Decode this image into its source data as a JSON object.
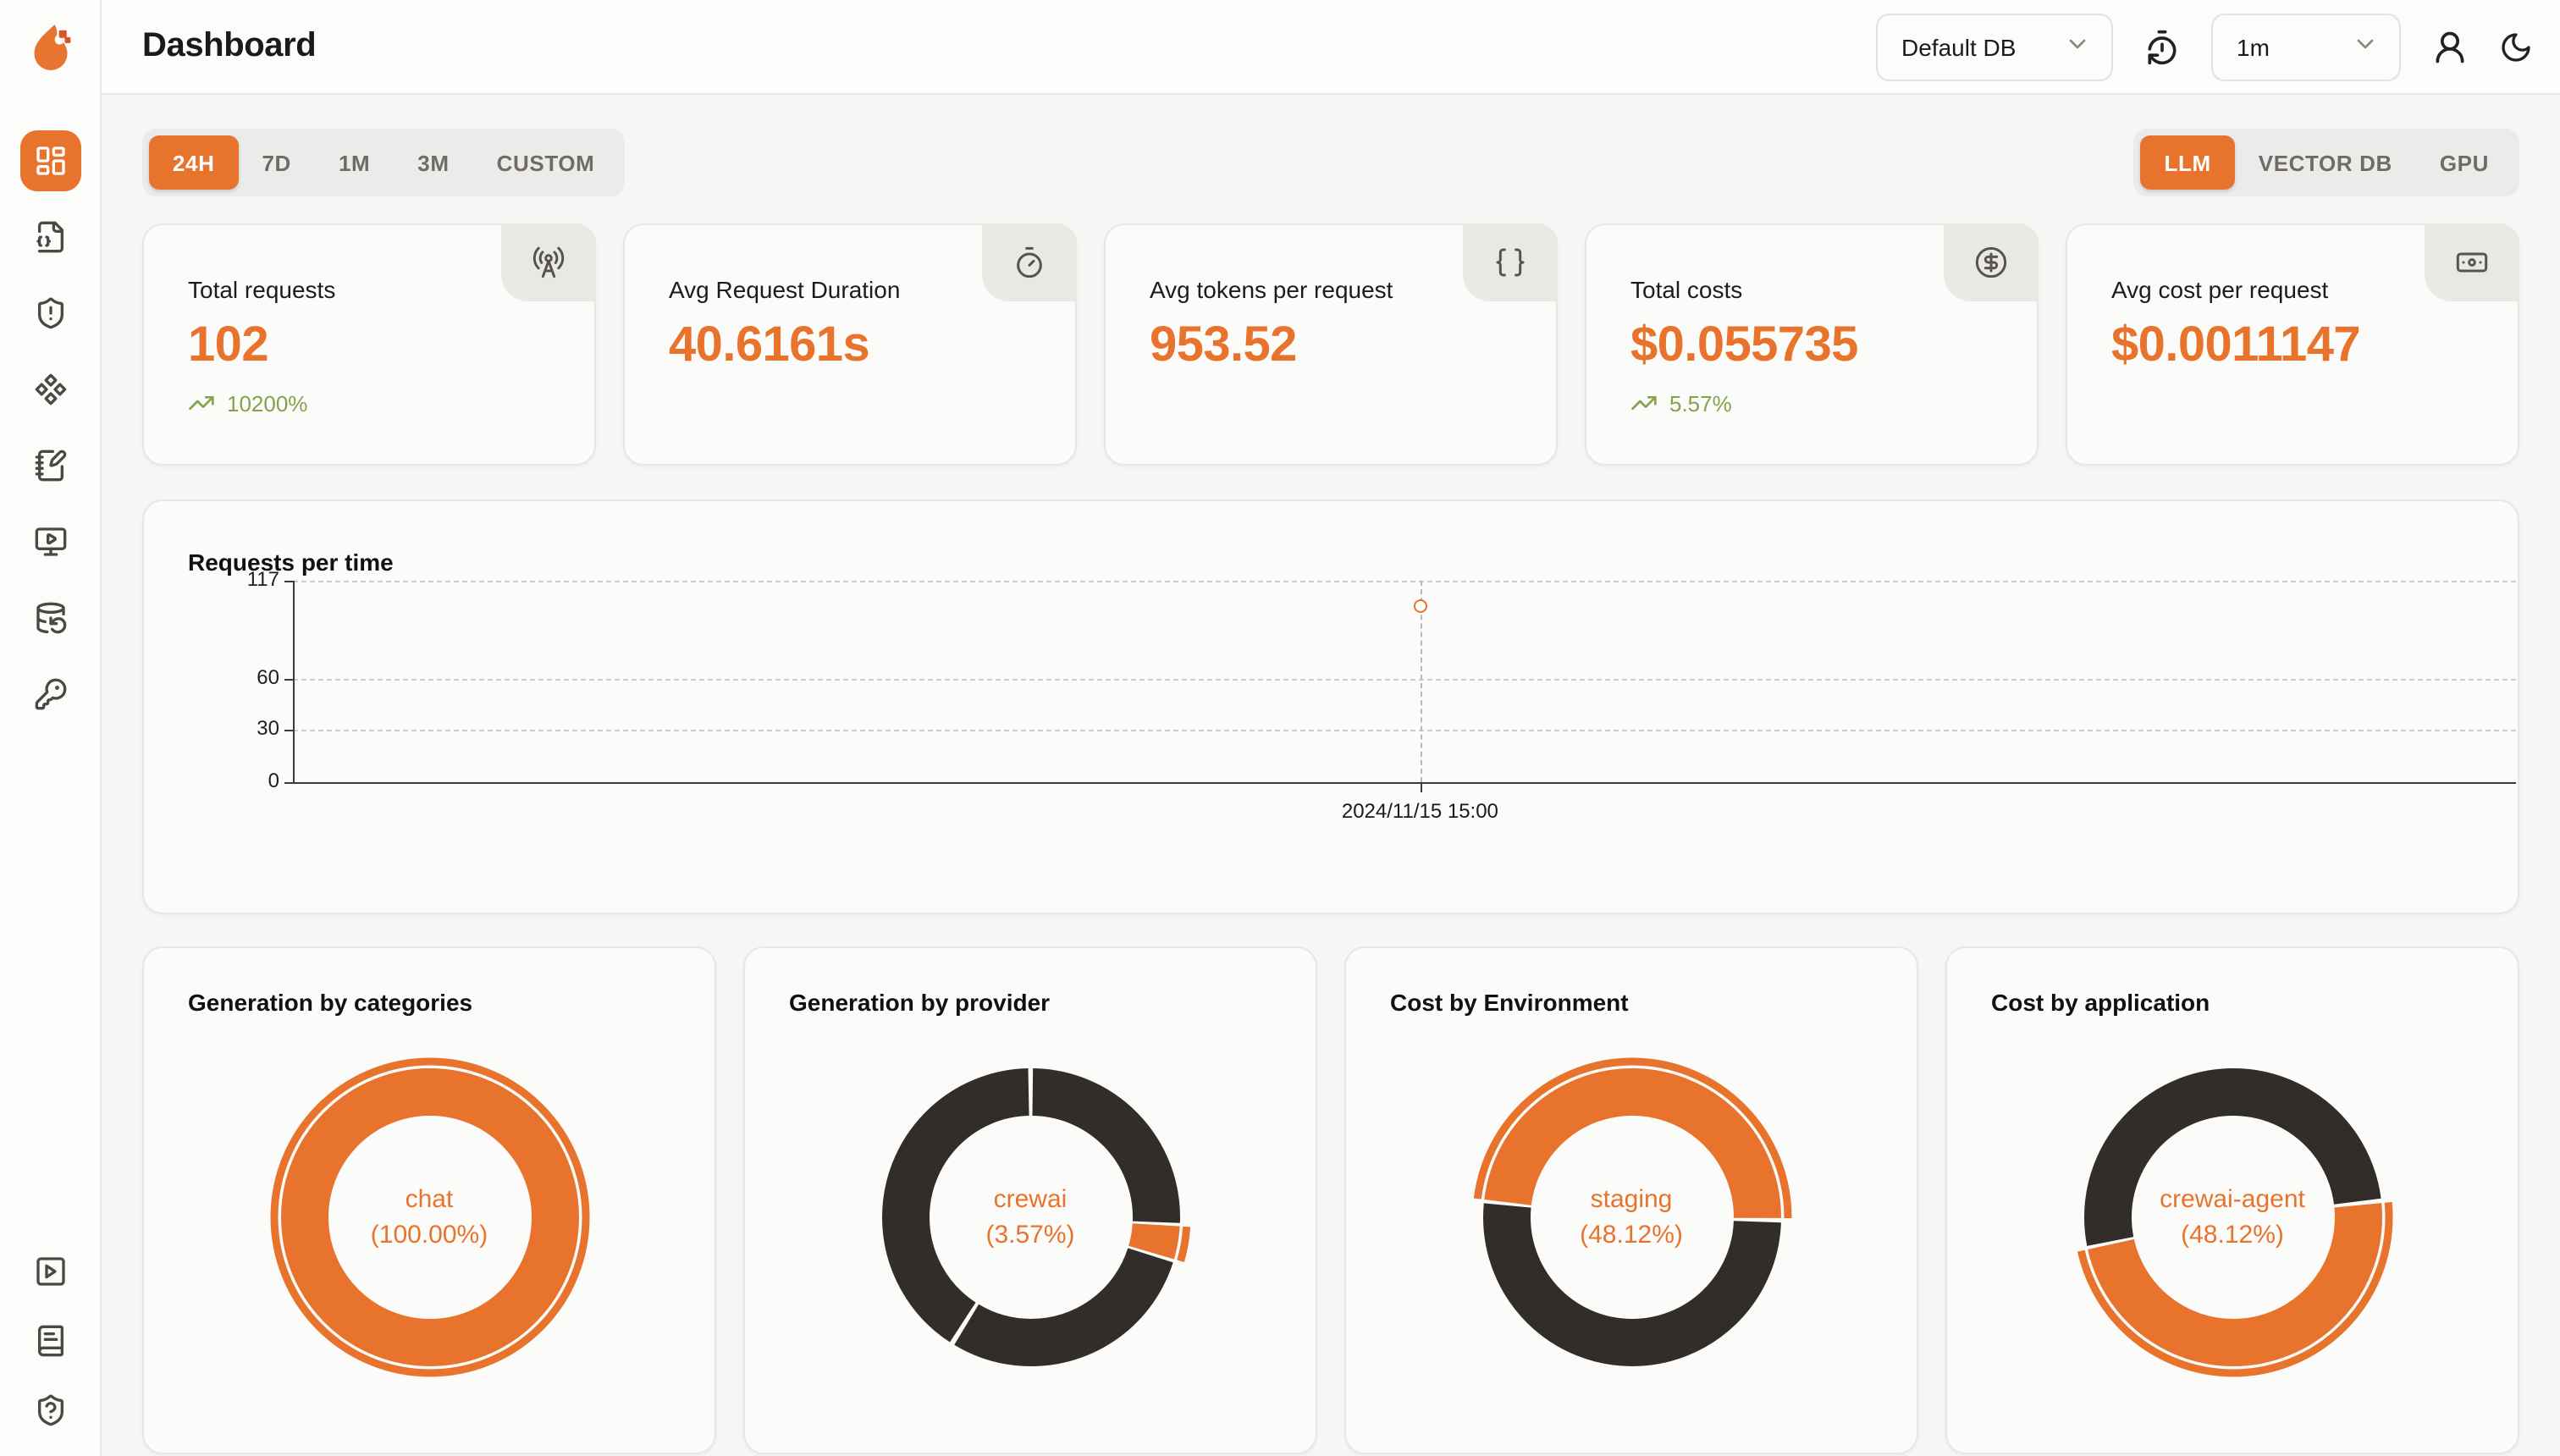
{
  "header": {
    "title": "Dashboard",
    "db_select": {
      "value": "Default DB"
    },
    "interval_select": {
      "value": "1m"
    }
  },
  "sidebar": {
    "items": [
      "dashboard",
      "traces",
      "issues",
      "integrations",
      "annotations",
      "playground",
      "datasets",
      "api-keys"
    ],
    "footer_items": [
      "demo-video",
      "documentation",
      "support"
    ]
  },
  "filters": {
    "time_ranges": [
      "24H",
      "7D",
      "1M",
      "3M",
      "CUSTOM"
    ],
    "active_time_range": "24H",
    "modes": [
      "LLM",
      "VECTOR DB",
      "GPU"
    ],
    "active_mode": "LLM"
  },
  "stats": [
    {
      "label": "Total requests",
      "value": "102",
      "trend": "10200%",
      "icon": "radio-tower-icon"
    },
    {
      "label": "Avg Request Duration",
      "value": "40.6161s",
      "icon": "timer-icon"
    },
    {
      "label": "Avg tokens per request",
      "value": "953.52",
      "icon": "braces-icon"
    },
    {
      "label": "Total costs",
      "value": "$0.055735",
      "trend": "5.57%",
      "icon": "circle-dollar-icon"
    },
    {
      "label": "Avg cost per request",
      "value": "$0.0011147",
      "icon": "banknote-icon"
    }
  ],
  "colors": {
    "accent": "#E8732C",
    "dark_slice": "#322D29",
    "trend_green": "#84A24B"
  },
  "chart_data": [
    {
      "type": "scatter",
      "title": "Requests per time",
      "x": [
        "2024/11/15 15:00"
      ],
      "values": [
        102
      ],
      "yticks": [
        0,
        30,
        60,
        117
      ],
      "ylim": [
        0,
        117
      ],
      "grid": "horizontal-dashed",
      "point_color": "#E8732C"
    },
    {
      "type": "donut",
      "title": "Generation by categories",
      "center": [
        "chat",
        "(100.00%)"
      ],
      "series": [
        {
          "name": "chat",
          "percent": 100
        }
      ],
      "segments": [
        {
          "start": 0,
          "sweep": 100,
          "color": "#E8732C"
        }
      ],
      "highlight": {
        "start": 0,
        "sweep": 100
      }
    },
    {
      "type": "donut",
      "title": "Generation by provider",
      "center": [
        "crewai",
        "(3.57%)"
      ],
      "series": [
        {
          "name": "crewai",
          "percent": 3.57
        }
      ],
      "segments": [
        {
          "start": 0.2,
          "sweep": 25.45,
          "color": "#322D29"
        },
        {
          "start": 26.0,
          "sweep": 3.57,
          "color": "#E8732C"
        },
        {
          "start": 29.95,
          "sweep": 28.75,
          "color": "#322D29"
        },
        {
          "start": 59.25,
          "sweep": 40.55,
          "color": "#322D29"
        }
      ],
      "highlight": {
        "start": 26.0,
        "sweep": 3.57
      }
    },
    {
      "type": "donut",
      "title": "Cost by Environment",
      "center": [
        "staging",
        "(48.12%)"
      ],
      "series": [
        {
          "name": "staging",
          "percent": 48.12
        }
      ],
      "segments": [
        {
          "start": 25.6,
          "sweep": 51.0,
          "color": "#322D29"
        },
        {
          "start": 77.0,
          "sweep": 48.12,
          "color": "#E8732C"
        }
      ],
      "highlight": {
        "start": 77.0,
        "sweep": 48.12
      }
    },
    {
      "type": "donut",
      "title": "Cost by application",
      "center": [
        "crewai-agent",
        "(48.12%)"
      ],
      "series": [
        {
          "name": "crewai-agent",
          "percent": 48.12
        }
      ],
      "segments": [
        {
          "start": 23.5,
          "sweep": 48.12,
          "color": "#E8732C"
        },
        {
          "start": 72.0,
          "sweep": 51.0,
          "color": "#322D29"
        }
      ],
      "highlight": {
        "start": 23.5,
        "sweep": 48.12
      }
    }
  ]
}
